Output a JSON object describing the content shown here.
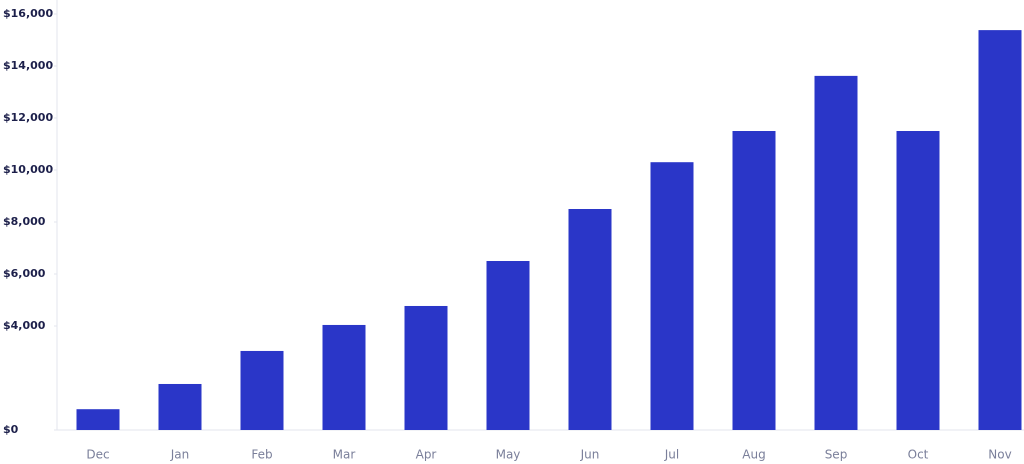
{
  "chart_data": {
    "type": "bar",
    "categories": [
      "Dec",
      "Jan",
      "Feb",
      "Mar",
      "Apr",
      "May",
      "Jun",
      "Jul",
      "Aug",
      "Sep",
      "Oct",
      "Nov"
    ],
    "values": [
      800,
      1770,
      3040,
      4040,
      4770,
      6500,
      8500,
      10300,
      11500,
      13620,
      11500,
      15380
    ],
    "color": "#2a36c8",
    "ylim": [
      0,
      16000
    ],
    "yticks": [
      {
        "value": 0,
        "label": "$0"
      },
      {
        "value": 4000,
        "label": "$4,000"
      },
      {
        "value": 6000,
        "label": "$6,000"
      },
      {
        "value": 8000,
        "label": "$8,000"
      },
      {
        "value": 10000,
        "label": "$10,000"
      },
      {
        "value": 12000,
        "label": "$12,000"
      },
      {
        "value": 14000,
        "label": "$14,000"
      },
      {
        "value": 16000,
        "label": "$16,000"
      }
    ]
  }
}
